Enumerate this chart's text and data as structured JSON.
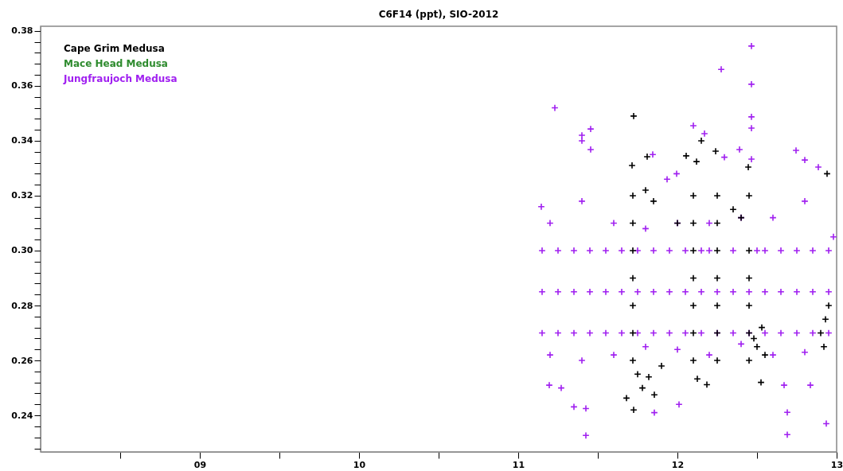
{
  "chart_data": {
    "type": "scatter",
    "title": "C6F14 (ppt), SIO-2012",
    "marker": "cross",
    "legend": "top left",
    "grid": false,
    "xlim": [
      2008,
      2013
    ],
    "xticks": [
      {
        "value": 2008.5,
        "label": null
      },
      {
        "value": 2009,
        "label": "09"
      },
      {
        "value": 2009.5,
        "label": null
      },
      {
        "value": 2010,
        "label": "10"
      },
      {
        "value": 2010.5,
        "label": null
      },
      {
        "value": 2011,
        "label": "11"
      },
      {
        "value": 2011.5,
        "label": null
      },
      {
        "value": 2012,
        "label": "12"
      },
      {
        "value": 2012.5,
        "label": null
      },
      {
        "value": 2013,
        "label": "13"
      }
    ],
    "ylim": [
      0.2267,
      0.3817
    ],
    "yticks": [
      {
        "value": 0.228,
        "label": null
      },
      {
        "value": 0.232,
        "label": null
      },
      {
        "value": 0.236,
        "label": null
      },
      0.24,
      {
        "value": 0.244,
        "label": null
      },
      {
        "value": 0.248,
        "label": null
      },
      {
        "value": 0.252,
        "label": null
      },
      {
        "value": 0.256,
        "label": null
      },
      0.26,
      {
        "value": 0.264,
        "label": null
      },
      {
        "value": 0.268,
        "label": null
      },
      {
        "value": 0.272,
        "label": null
      },
      {
        "value": 0.276,
        "label": null
      },
      0.28,
      {
        "value": 0.284,
        "label": null
      },
      {
        "value": 0.288,
        "label": null
      },
      {
        "value": 0.292,
        "label": null
      },
      {
        "value": 0.296,
        "label": null
      },
      {
        "value": 0.3,
        "label": "0.30"
      },
      {
        "value": 0.304,
        "label": null
      },
      {
        "value": 0.308,
        "label": null
      },
      {
        "value": 0.312,
        "label": null
      },
      {
        "value": 0.316,
        "label": null
      },
      0.32,
      {
        "value": 0.324,
        "label": null
      },
      {
        "value": 0.328,
        "label": null
      },
      {
        "value": 0.332,
        "label": null
      },
      {
        "value": 0.336,
        "label": null
      },
      0.34,
      {
        "value": 0.344,
        "label": null
      },
      {
        "value": 0.348,
        "label": null
      },
      {
        "value": 0.352,
        "label": null
      },
      {
        "value": 0.356,
        "label": null
      },
      0.36,
      {
        "value": 0.364,
        "label": null
      },
      {
        "value": 0.368,
        "label": null
      },
      {
        "value": 0.372,
        "label": null
      },
      {
        "value": 0.376,
        "label": null
      },
      0.38
    ],
    "series": [
      {
        "name": "Cape Grim Medusa",
        "color": "#000000",
        "x": [
          2011.725,
          2011.81,
          2011.715,
          2012.055,
          2012.15,
          2012.12,
          2012.24,
          2012.445,
          2012.94,
          2011.725,
          2011.68,
          2011.855,
          2012.185,
          2012.125,
          2012.525,
          2011.72,
          2011.72,
          2011.72,
          2011.72,
          2011.72,
          2011.72,
          2011.72,
          2012.1,
          2012.1,
          2012.1,
          2012.1,
          2012.1,
          2012.1,
          2012.1,
          2012.25,
          2012.25,
          2012.25,
          2012.25,
          2012.25,
          2012.25,
          2012.25,
          2012.45,
          2012.45,
          2012.45,
          2012.45,
          2012.45,
          2012.45,
          2012.5,
          2012.55,
          2012.48,
          2012.53,
          2012.9,
          2012.93,
          2012.95,
          2012.92,
          2011.8,
          2011.85,
          2011.75,
          2011.9,
          2012.0,
          2012.35,
          2012.4,
          2011.78,
          2011.82
        ],
        "values": [
          0.349,
          0.3342,
          0.331,
          0.3345,
          0.34,
          0.3324,
          0.3362,
          0.3304,
          0.328,
          0.242,
          0.2463,
          0.2475,
          0.2512,
          0.2533,
          0.252,
          0.26,
          0.27,
          0.28,
          0.29,
          0.3,
          0.31,
          0.32,
          0.26,
          0.27,
          0.28,
          0.29,
          0.3,
          0.31,
          0.32,
          0.26,
          0.27,
          0.28,
          0.29,
          0.3,
          0.31,
          0.32,
          0.26,
          0.27,
          0.28,
          0.29,
          0.3,
          0.32,
          0.265,
          0.262,
          0.268,
          0.272,
          0.27,
          0.275,
          0.28,
          0.265,
          0.322,
          0.318,
          0.255,
          0.258,
          0.31,
          0.315,
          0.312,
          0.25,
          0.254
        ]
      },
      {
        "name": "Mace Head Medusa",
        "color": "#2e8b2e"
      },
      {
        "name": "Jungfraujoch Medusa",
        "color": "#a020f0",
        "x": [
          2011.23,
          2012.465,
          2012.275,
          2012.465,
          2012.465,
          2012.465,
          2012.465,
          2012.1,
          2012.17,
          2011.4,
          2011.455,
          2011.425,
          2012.69,
          2012.69,
          2012.935,
          2012.01,
          2011.855,
          2011.35,
          2011.425,
          2011.195,
          2011.27,
          2012.835,
          2012.67,
          2011.455,
          2011.4,
          2012.745,
          2012.8,
          2012.885,
          2011.935,
          2011.995,
          2012.39,
          2012.295,
          2011.845,
          2011.145,
          2011.15,
          2011.25,
          2011.35,
          2011.45,
          2011.55,
          2011.65,
          2011.75,
          2011.85,
          2011.95,
          2012.05,
          2012.15,
          2012.25,
          2012.35,
          2012.45,
          2012.55,
          2012.65,
          2012.75,
          2012.85,
          2012.95,
          2011.15,
          2011.25,
          2011.35,
          2011.45,
          2011.55,
          2011.65,
          2011.75,
          2011.85,
          2011.95,
          2012.05,
          2012.15,
          2012.25,
          2012.35,
          2012.45,
          2012.55,
          2012.65,
          2012.75,
          2012.85,
          2012.95,
          2011.15,
          2011.25,
          2011.35,
          2011.45,
          2011.55,
          2011.65,
          2011.75,
          2011.85,
          2011.95,
          2012.05,
          2012.15,
          2012.2,
          2012.35,
          2012.5,
          2012.55,
          2012.65,
          2012.75,
          2012.85,
          2012.95,
          2011.2,
          2011.4,
          2011.6,
          2011.8,
          2012.0,
          2012.2,
          2012.4,
          2012.6,
          2012.8,
          2011.2,
          2011.4,
          2011.6,
          2011.8,
          2012.0,
          2012.2,
          2012.4,
          2012.6,
          2012.8,
          2012.98
        ],
        "values": [
          0.352,
          0.3745,
          0.366,
          0.3606,
          0.3487,
          0.3446,
          0.3333,
          0.3455,
          0.3426,
          0.342,
          0.3443,
          0.2327,
          0.233,
          0.2411,
          0.237,
          0.244,
          0.241,
          0.2431,
          0.2425,
          0.251,
          0.25,
          0.251,
          0.251,
          0.3368,
          0.34,
          0.3365,
          0.333,
          0.3304,
          0.326,
          0.328,
          0.3368,
          0.334,
          0.335,
          0.316,
          0.27,
          0.27,
          0.27,
          0.27,
          0.27,
          0.27,
          0.27,
          0.27,
          0.27,
          0.27,
          0.27,
          0.27,
          0.27,
          0.27,
          0.27,
          0.27,
          0.27,
          0.27,
          0.27,
          0.285,
          0.285,
          0.285,
          0.285,
          0.285,
          0.285,
          0.285,
          0.285,
          0.285,
          0.285,
          0.285,
          0.285,
          0.285,
          0.285,
          0.285,
          0.285,
          0.285,
          0.285,
          0.285,
          0.3,
          0.3,
          0.3,
          0.3,
          0.3,
          0.3,
          0.3,
          0.3,
          0.3,
          0.3,
          0.3,
          0.3,
          0.3,
          0.3,
          0.3,
          0.3,
          0.3,
          0.3,
          0.3,
          0.262,
          0.26,
          0.262,
          0.265,
          0.264,
          0.262,
          0.266,
          0.262,
          0.263,
          0.31,
          0.318,
          0.31,
          0.308,
          0.31,
          0.31,
          0.312,
          0.312,
          0.318,
          0.305
        ]
      }
    ]
  }
}
